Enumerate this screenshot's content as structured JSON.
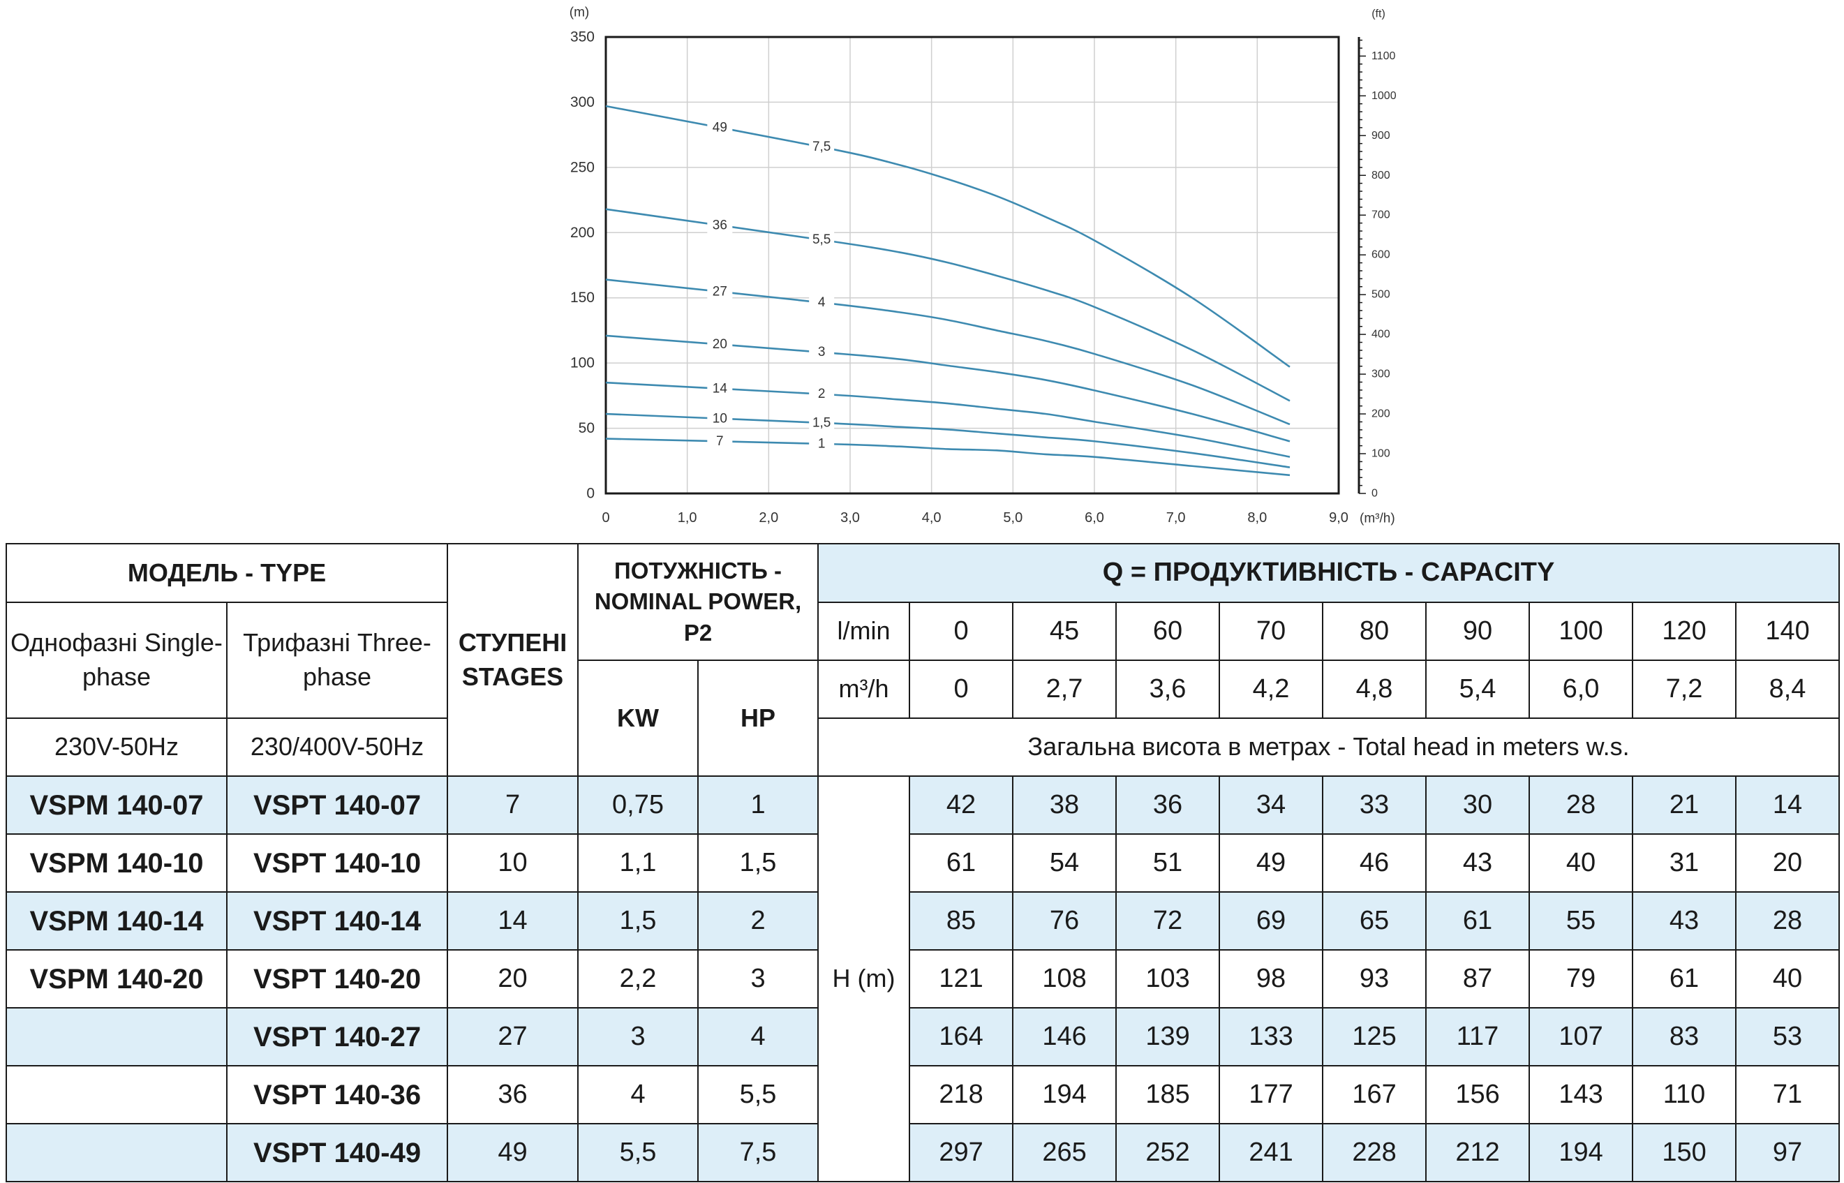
{
  "chart_data": {
    "type": "line",
    "title": "",
    "xlabel": "(m³/h)",
    "ylabel": "(m)",
    "y2label": "(ft)",
    "xlim": [
      0,
      9
    ],
    "ylim": [
      0,
      350
    ],
    "y2lim_ft": [
      0,
      1148
    ],
    "x_ticks": [
      "0",
      "1,0",
      "2,0",
      "3,0",
      "4,0",
      "5,0",
      "6,0",
      "7,0",
      "8,0",
      "9,0"
    ],
    "y_ticks": [
      "0",
      "50",
      "100",
      "150",
      "200",
      "250",
      "300",
      "350"
    ],
    "y2_ticks": [
      "0",
      "100",
      "200",
      "300",
      "400",
      "500",
      "600",
      "700",
      "800",
      "900",
      "1000",
      "1100"
    ],
    "grid": true,
    "x": [
      0,
      2.7,
      3.6,
      4.2,
      4.8,
      5.4,
      6.0,
      7.2,
      8.4
    ],
    "series": [
      {
        "stages_label": "7",
        "power_label": "1",
        "values": [
          42,
          38,
          36,
          34,
          33,
          30,
          28,
          21,
          14
        ]
      },
      {
        "stages_label": "10",
        "power_label": "1,5",
        "values": [
          61,
          54,
          51,
          49,
          46,
          43,
          40,
          31,
          20
        ]
      },
      {
        "stages_label": "14",
        "power_label": "2",
        "values": [
          85,
          76,
          72,
          69,
          65,
          61,
          55,
          43,
          28
        ]
      },
      {
        "stages_label": "20",
        "power_label": "3",
        "values": [
          121,
          108,
          103,
          98,
          93,
          87,
          79,
          61,
          40
        ]
      },
      {
        "stages_label": "27",
        "power_label": "4",
        "values": [
          164,
          146,
          139,
          133,
          125,
          117,
          107,
          83,
          53
        ]
      },
      {
        "stages_label": "36",
        "power_label": "5,5",
        "values": [
          218,
          194,
          185,
          177,
          167,
          156,
          143,
          110,
          71
        ]
      },
      {
        "stages_label": "49",
        "power_label": "7,5",
        "values": [
          297,
          265,
          252,
          241,
          228,
          212,
          194,
          150,
          97
        ]
      }
    ],
    "color": "#3d8ab0"
  },
  "table": {
    "model_header": "МОДЕЛЬ - TYPE",
    "single_phase": "Однофазні Single-phase",
    "three_phase": "Трифазні Three-phase",
    "single_voltage": "230V-50Hz",
    "three_voltage": "230/400V-50Hz",
    "stages_header": "СТУПЕНІ STAGES",
    "power_header": "ПОТУЖНІСТЬ - NOMINAL POWER, P2",
    "kw": "KW",
    "hp": "HP",
    "capacity_header": "Q = ПРОДУКТИВНІСТЬ - CAPACITY",
    "lmin_label": "l/min",
    "m3h_label": "m³/h",
    "lmin": [
      "0",
      "45",
      "60",
      "70",
      "80",
      "90",
      "100",
      "120",
      "140"
    ],
    "m3h": [
      "0",
      "2,7",
      "3,6",
      "4,2",
      "4,8",
      "5,4",
      "6,0",
      "7,2",
      "8,4"
    ],
    "total_head": "Загальна висота в метрах - Total head in meters w.s.",
    "h_label": "H (m)",
    "rows": [
      {
        "single": "VSPM 140-07",
        "three": "VSPT 140-07",
        "stages": "7",
        "kw": "0,75",
        "hp": "1",
        "h": [
          "42",
          "38",
          "36",
          "34",
          "33",
          "30",
          "28",
          "21",
          "14"
        ]
      },
      {
        "single": "VSPM 140-10",
        "three": "VSPT 140-10",
        "stages": "10",
        "kw": "1,1",
        "hp": "1,5",
        "h": [
          "61",
          "54",
          "51",
          "49",
          "46",
          "43",
          "40",
          "31",
          "20"
        ]
      },
      {
        "single": "VSPM 140-14",
        "three": "VSPT 140-14",
        "stages": "14",
        "kw": "1,5",
        "hp": "2",
        "h": [
          "85",
          "76",
          "72",
          "69",
          "65",
          "61",
          "55",
          "43",
          "28"
        ]
      },
      {
        "single": "VSPM 140-20",
        "three": "VSPT 140-20",
        "stages": "20",
        "kw": "2,2",
        "hp": "3",
        "h": [
          "121",
          "108",
          "103",
          "98",
          "93",
          "87",
          "79",
          "61",
          "40"
        ]
      },
      {
        "single": "",
        "three": "VSPT 140-27",
        "stages": "27",
        "kw": "3",
        "hp": "4",
        "h": [
          "164",
          "146",
          "139",
          "133",
          "125",
          "117",
          "107",
          "83",
          "53"
        ]
      },
      {
        "single": "",
        "three": "VSPT 140-36",
        "stages": "36",
        "kw": "4",
        "hp": "5,5",
        "h": [
          "218",
          "194",
          "185",
          "177",
          "167",
          "156",
          "143",
          "110",
          "71"
        ]
      },
      {
        "single": "",
        "three": "VSPT 140-49",
        "stages": "49",
        "kw": "5,5",
        "hp": "7,5",
        "h": [
          "297",
          "265",
          "252",
          "241",
          "228",
          "212",
          "194",
          "150",
          "97"
        ]
      }
    ]
  }
}
